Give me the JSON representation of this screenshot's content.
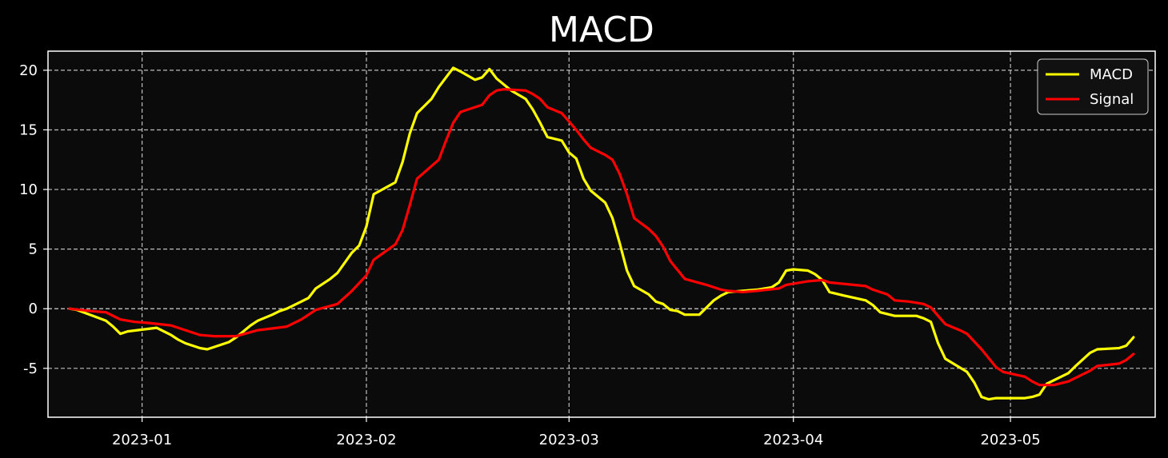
{
  "colors": {
    "figure_bg": "#000000",
    "axes_bg": "#0b0b0b",
    "grid": "#bdbdbd",
    "spine": "#ffffff",
    "text": "#ffffff",
    "zero_line": "#bdbdbd"
  },
  "chart_data": {
    "type": "line",
    "title": "MACD",
    "xlabel": "",
    "ylabel": "",
    "x_axis": "date",
    "xlim": [
      "2022-12-19",
      "2023-05-21"
    ],
    "ylim": [
      -9.1,
      21.6
    ],
    "xticks": [
      {
        "date": "2023-01-01",
        "label": "2023-01"
      },
      {
        "date": "2023-02-01",
        "label": "2023-02"
      },
      {
        "date": "2023-03-01",
        "label": "2023-03"
      },
      {
        "date": "2023-04-01",
        "label": "2023-04"
      },
      {
        "date": "2023-05-01",
        "label": "2023-05"
      }
    ],
    "yticks": [
      -5,
      0,
      5,
      10,
      15,
      20
    ],
    "grid": true,
    "grid_style": "dashed",
    "zero_line": true,
    "legend_position": "top-right",
    "series": [
      {
        "name": "MACD",
        "color": "#ffff00",
        "points": [
          [
            "2022-12-22",
            0.0
          ],
          [
            "2022-12-23",
            -0.1
          ],
          [
            "2022-12-27",
            -1.0
          ],
          [
            "2022-12-28",
            -1.5
          ],
          [
            "2022-12-29",
            -2.1
          ],
          [
            "2022-12-30",
            -1.9
          ],
          [
            "2023-01-03",
            -1.6
          ],
          [
            "2023-01-05",
            -2.2
          ],
          [
            "2023-01-06",
            -2.6
          ],
          [
            "2023-01-07",
            -2.9
          ],
          [
            "2023-01-09",
            -3.3
          ],
          [
            "2023-01-10",
            -3.4
          ],
          [
            "2023-01-11",
            -3.2
          ],
          [
            "2023-01-12",
            -3.0
          ],
          [
            "2023-01-13",
            -2.8
          ],
          [
            "2023-01-14",
            -2.4
          ],
          [
            "2023-01-16",
            -1.4
          ],
          [
            "2023-01-17",
            -1.0
          ],
          [
            "2023-01-19",
            -0.5
          ],
          [
            "2023-01-20",
            -0.2
          ],
          [
            "2023-01-21",
            0.0
          ],
          [
            "2023-01-23",
            0.6
          ],
          [
            "2023-01-24",
            0.9
          ],
          [
            "2023-01-25",
            1.7
          ],
          [
            "2023-01-27",
            2.5
          ],
          [
            "2023-01-28",
            3.0
          ],
          [
            "2023-01-30",
            4.7
          ],
          [
            "2023-01-31",
            5.3
          ],
          [
            "2023-02-01",
            6.9
          ],
          [
            "2023-02-02",
            9.6
          ],
          [
            "2023-02-05",
            10.6
          ],
          [
            "2023-02-06",
            12.3
          ],
          [
            "2023-02-07",
            14.7
          ],
          [
            "2023-02-08",
            16.4
          ],
          [
            "2023-02-10",
            17.6
          ],
          [
            "2023-02-11",
            18.6
          ],
          [
            "2023-02-13",
            20.2
          ],
          [
            "2023-02-14",
            19.9
          ],
          [
            "2023-02-16",
            19.2
          ],
          [
            "2023-02-17",
            19.4
          ],
          [
            "2023-02-18",
            20.1
          ],
          [
            "2023-02-19",
            19.3
          ],
          [
            "2023-02-21",
            18.3
          ],
          [
            "2023-02-23",
            17.6
          ],
          [
            "2023-02-24",
            16.7
          ],
          [
            "2023-02-25",
            15.6
          ],
          [
            "2023-02-26",
            14.4
          ],
          [
            "2023-02-28",
            14.1
          ],
          [
            "2023-03-01",
            13.1
          ],
          [
            "2023-03-02",
            12.6
          ],
          [
            "2023-03-03",
            10.9
          ],
          [
            "2023-03-04",
            9.9
          ],
          [
            "2023-03-06",
            8.9
          ],
          [
            "2023-03-07",
            7.6
          ],
          [
            "2023-03-08",
            5.5
          ],
          [
            "2023-03-09",
            3.2
          ],
          [
            "2023-03-10",
            1.9
          ],
          [
            "2023-03-12",
            1.2
          ],
          [
            "2023-03-13",
            0.6
          ],
          [
            "2023-03-14",
            0.4
          ],
          [
            "2023-03-15",
            -0.1
          ],
          [
            "2023-03-16",
            -0.2
          ],
          [
            "2023-03-17",
            -0.5
          ],
          [
            "2023-03-19",
            -0.5
          ],
          [
            "2023-03-21",
            0.7
          ],
          [
            "2023-03-22",
            1.1
          ],
          [
            "2023-03-23",
            1.4
          ],
          [
            "2023-03-25",
            1.5
          ],
          [
            "2023-03-27",
            1.6
          ],
          [
            "2023-03-29",
            1.8
          ],
          [
            "2023-03-30",
            2.2
          ],
          [
            "2023-03-31",
            3.2
          ],
          [
            "2023-04-01",
            3.3
          ],
          [
            "2023-04-03",
            3.2
          ],
          [
            "2023-04-04",
            2.9
          ],
          [
            "2023-04-05",
            2.4
          ],
          [
            "2023-04-06",
            1.4
          ],
          [
            "2023-04-08",
            1.1
          ],
          [
            "2023-04-11",
            0.7
          ],
          [
            "2023-04-12",
            0.3
          ],
          [
            "2023-04-13",
            -0.3
          ],
          [
            "2023-04-15",
            -0.6
          ],
          [
            "2023-04-18",
            -0.6
          ],
          [
            "2023-04-19",
            -0.8
          ],
          [
            "2023-04-20",
            -1.1
          ],
          [
            "2023-04-21",
            -2.9
          ],
          [
            "2023-04-22",
            -4.2
          ],
          [
            "2023-04-25",
            -5.3
          ],
          [
            "2023-04-26",
            -6.2
          ],
          [
            "2023-04-27",
            -7.4
          ],
          [
            "2023-04-28",
            -7.6
          ],
          [
            "2023-04-29",
            -7.5
          ],
          [
            "2023-05-01",
            -7.5
          ],
          [
            "2023-05-03",
            -7.5
          ],
          [
            "2023-05-04",
            -7.4
          ],
          [
            "2023-05-05",
            -7.2
          ],
          [
            "2023-05-06",
            -6.3
          ],
          [
            "2023-05-09",
            -5.4
          ],
          [
            "2023-05-10",
            -4.8
          ],
          [
            "2023-05-12",
            -3.7
          ],
          [
            "2023-05-13",
            -3.4
          ],
          [
            "2023-05-16",
            -3.3
          ],
          [
            "2023-05-17",
            -3.1
          ],
          [
            "2023-05-18",
            -2.4
          ]
        ]
      },
      {
        "name": "Signal",
        "color": "#ff0000",
        "points": [
          [
            "2022-12-22",
            0.0
          ],
          [
            "2022-12-25",
            -0.2
          ],
          [
            "2022-12-27",
            -0.3
          ],
          [
            "2022-12-28",
            -0.6
          ],
          [
            "2022-12-29",
            -0.9
          ],
          [
            "2022-12-31",
            -1.1
          ],
          [
            "2023-01-02",
            -1.2
          ],
          [
            "2023-01-05",
            -1.4
          ],
          [
            "2023-01-06",
            -1.6
          ],
          [
            "2023-01-09",
            -2.2
          ],
          [
            "2023-01-11",
            -2.3
          ],
          [
            "2023-01-14",
            -2.3
          ],
          [
            "2023-01-17",
            -1.8
          ],
          [
            "2023-01-21",
            -1.5
          ],
          [
            "2023-01-23",
            -0.9
          ],
          [
            "2023-01-25",
            -0.1
          ],
          [
            "2023-01-28",
            0.4
          ],
          [
            "2023-01-30",
            1.5
          ],
          [
            "2023-02-01",
            2.8
          ],
          [
            "2023-02-02",
            4.1
          ],
          [
            "2023-02-05",
            5.4
          ],
          [
            "2023-02-06",
            6.6
          ],
          [
            "2023-02-07",
            8.7
          ],
          [
            "2023-02-08",
            10.9
          ],
          [
            "2023-02-11",
            12.5
          ],
          [
            "2023-02-12",
            14.1
          ],
          [
            "2023-02-13",
            15.6
          ],
          [
            "2023-02-14",
            16.5
          ],
          [
            "2023-02-17",
            17.1
          ],
          [
            "2023-02-18",
            17.9
          ],
          [
            "2023-02-19",
            18.3
          ],
          [
            "2023-02-20",
            18.4
          ],
          [
            "2023-02-23",
            18.3
          ],
          [
            "2023-02-24",
            18.0
          ],
          [
            "2023-02-25",
            17.6
          ],
          [
            "2023-02-26",
            16.9
          ],
          [
            "2023-02-28",
            16.4
          ],
          [
            "2023-03-01",
            15.7
          ],
          [
            "2023-03-02",
            15.0
          ],
          [
            "2023-03-03",
            14.2
          ],
          [
            "2023-03-04",
            13.5
          ],
          [
            "2023-03-06",
            12.9
          ],
          [
            "2023-03-07",
            12.5
          ],
          [
            "2023-03-08",
            11.3
          ],
          [
            "2023-03-09",
            9.6
          ],
          [
            "2023-03-10",
            7.6
          ],
          [
            "2023-03-12",
            6.7
          ],
          [
            "2023-03-13",
            6.1
          ],
          [
            "2023-03-14",
            5.2
          ],
          [
            "2023-03-15",
            4.0
          ],
          [
            "2023-03-17",
            2.5
          ],
          [
            "2023-03-20",
            2.0
          ],
          [
            "2023-03-22",
            1.6
          ],
          [
            "2023-03-23",
            1.5
          ],
          [
            "2023-03-25",
            1.4
          ],
          [
            "2023-03-27",
            1.5
          ],
          [
            "2023-03-30",
            1.7
          ],
          [
            "2023-03-31",
            2.0
          ],
          [
            "2023-04-03",
            2.3
          ],
          [
            "2023-04-05",
            2.4
          ],
          [
            "2023-04-06",
            2.2
          ],
          [
            "2023-04-11",
            1.9
          ],
          [
            "2023-04-12",
            1.6
          ],
          [
            "2023-04-14",
            1.2
          ],
          [
            "2023-04-15",
            0.7
          ],
          [
            "2023-04-17",
            0.6
          ],
          [
            "2023-04-19",
            0.4
          ],
          [
            "2023-04-20",
            0.1
          ],
          [
            "2023-04-21",
            -0.6
          ],
          [
            "2023-04-22",
            -1.3
          ],
          [
            "2023-04-24",
            -1.8
          ],
          [
            "2023-04-25",
            -2.1
          ],
          [
            "2023-04-27",
            -3.4
          ],
          [
            "2023-04-29",
            -4.9
          ],
          [
            "2023-04-30",
            -5.3
          ],
          [
            "2023-05-03",
            -5.7
          ],
          [
            "2023-05-04",
            -6.1
          ],
          [
            "2023-05-05",
            -6.4
          ],
          [
            "2023-05-07",
            -6.4
          ],
          [
            "2023-05-09",
            -6.1
          ],
          [
            "2023-05-11",
            -5.5
          ],
          [
            "2023-05-12",
            -5.2
          ],
          [
            "2023-05-13",
            -4.8
          ],
          [
            "2023-05-16",
            -4.6
          ],
          [
            "2023-05-17",
            -4.3
          ],
          [
            "2023-05-18",
            -3.8
          ]
        ]
      }
    ]
  }
}
